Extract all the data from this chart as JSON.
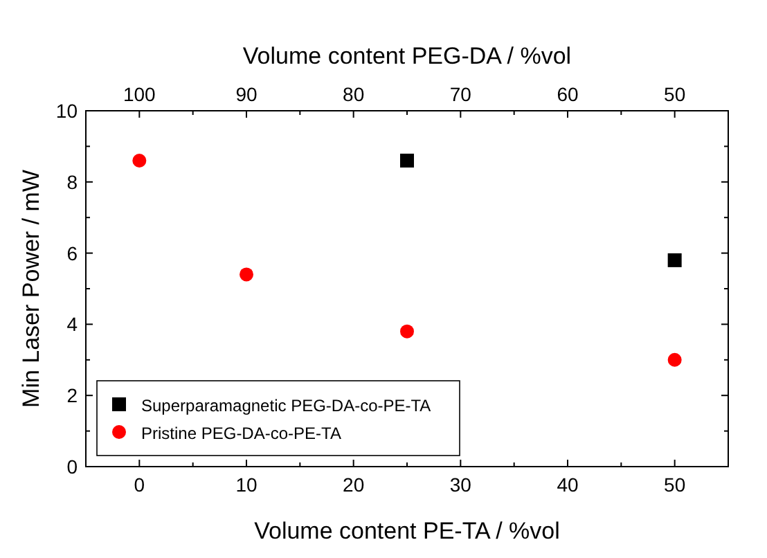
{
  "chart_data": {
    "type": "scatter",
    "xlabel": "Volume content PE-TA / %vol",
    "x2label": "Volume content PEG-DA / %vol",
    "ylabel": "Min Laser Power / mW",
    "xlim": [
      -5,
      55
    ],
    "xticks": [
      0,
      {
        "value": 5,
        "label": null
      },
      10,
      {
        "value": 15,
        "label": null
      },
      20,
      {
        "value": 25,
        "label": null
      },
      30,
      {
        "value": 35,
        "label": null
      },
      40,
      {
        "value": 45,
        "label": null
      },
      50
    ],
    "x2lim": [
      105,
      45
    ],
    "x2ticks": [
      100,
      {
        "value": 95,
        "label": null
      },
      90,
      {
        "value": 85,
        "label": null
      },
      80,
      {
        "value": 75,
        "label": null
      },
      70,
      {
        "value": 65,
        "label": null
      },
      60,
      {
        "value": 55,
        "label": null
      },
      50
    ],
    "ylim": [
      0,
      10
    ],
    "yticks": [
      0,
      {
        "value": 1,
        "label": null
      },
      2,
      {
        "value": 3,
        "label": null
      },
      4,
      {
        "value": 5,
        "label": null
      },
      6,
      {
        "value": 7,
        "label": null
      },
      8,
      {
        "value": 9,
        "label": null
      },
      10
    ],
    "legend": "bottom left",
    "grid": false,
    "series": [
      {
        "name": "Superparamagnetic PEG-DA-co-PE-TA",
        "color": "#000000",
        "marker": "square",
        "x": [
          25,
          50
        ],
        "values": [
          8.6,
          5.8
        ]
      },
      {
        "name": "Pristine PEG-DA-co-PE-TA",
        "color": "#ff0000",
        "marker": "circle",
        "x": [
          0,
          10,
          25,
          50
        ],
        "values": [
          8.6,
          5.4,
          3.8,
          3.0
        ]
      }
    ]
  }
}
